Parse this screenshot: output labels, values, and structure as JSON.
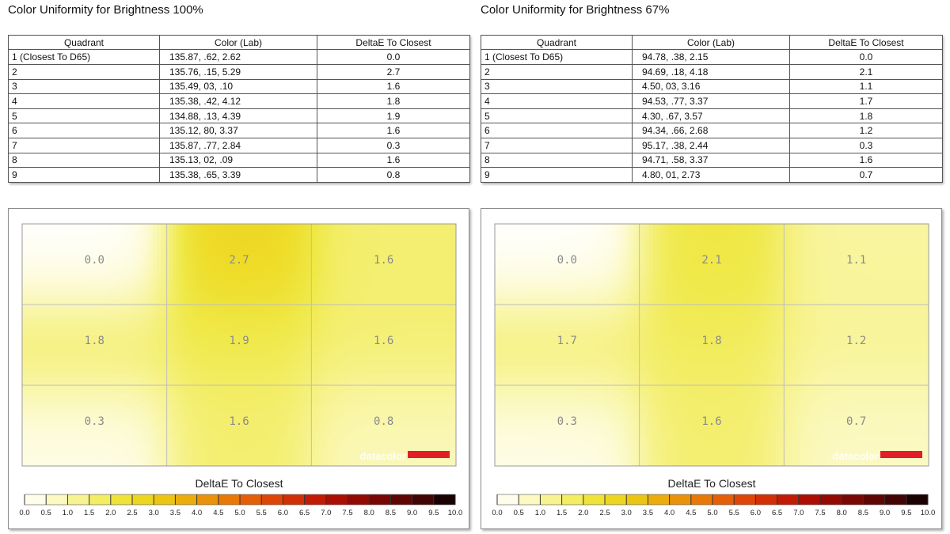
{
  "panels": [
    {
      "title": "Color Uniformity for Brightness 100%",
      "table": {
        "headers": [
          "Quadrant",
          "Color (Lab)",
          "DeltaE To Closest"
        ],
        "rows": [
          [
            "1 (Closest To D65)",
            "135.87,   .62,  2.62",
            "0.0"
          ],
          [
            "2",
            "135.76,   .15,  5.29",
            "2.7"
          ],
          [
            "3",
            "135.49,   03,    .10",
            "1.6"
          ],
          [
            "4",
            "135.38,   .42,  4.12",
            "1.8"
          ],
          [
            "5",
            "134.88,   .13,  4.39",
            "1.9"
          ],
          [
            "6",
            "135.12,   80,  3.37",
            "1.6"
          ],
          [
            "7",
            "135.87,   .77,  2.84",
            "0.3"
          ],
          [
            "8",
            "135.13,   02,    .09",
            "1.6"
          ],
          [
            "9",
            "135.38,   .65,  3.39",
            "0.8"
          ]
        ]
      }
    },
    {
      "title": "Color Uniformity for Brightness 67%",
      "table": {
        "headers": [
          "Quadrant",
          "Color (Lab)",
          "DeltaE To Closest"
        ],
        "rows": [
          [
            "1 (Closest To D65)",
            "94.78,   .38,  2.15",
            "0.0"
          ],
          [
            "2",
            "94.69,   .18,  4.18",
            "2.1"
          ],
          [
            "3",
            "4.50,   03,  3.16",
            "1.1"
          ],
          [
            "4",
            "94.53,   .77,  3.37",
            "1.7"
          ],
          [
            "5",
            "4.30,   .67,  3.57",
            "1.8"
          ],
          [
            "6",
            "94.34,   .66,  2.68",
            "1.2"
          ],
          [
            "7",
            "95.17,   .38,  2.44",
            "0.3"
          ],
          [
            "8",
            "94.71,   .58,  3.37",
            "1.6"
          ],
          [
            "9",
            "4.80,   01,  2.73",
            "0.7"
          ]
        ]
      }
    }
  ],
  "chart_data": [
    {
      "type": "heatmap",
      "grid": {
        "rows": 3,
        "cols": 3
      },
      "values": [
        [
          0.0,
          2.7,
          1.6
        ],
        [
          1.8,
          1.9,
          1.6
        ],
        [
          0.3,
          1.6,
          0.8
        ]
      ],
      "colorbar": {
        "label": "DeltaE To Closest",
        "range": [
          0,
          10
        ],
        "ticks": [
          "0.0",
          "0.5",
          "1.0",
          "1.5",
          "2.0",
          "2.5",
          "3.0",
          "3.5",
          "4.0",
          "4.5",
          "5.0",
          "5.5",
          "6.0",
          "6.5",
          "7.0",
          "7.5",
          "8.0",
          "8.5",
          "9.0",
          "9.5",
          "10.0"
        ],
        "colors": [
          "#ffffff",
          "#fdfbd8",
          "#f9f6a8",
          "#f5f07a",
          "#efe94a",
          "#eedd2a",
          "#ecce18",
          "#ebbb10",
          "#ea9e0a",
          "#e98508",
          "#e76a08",
          "#e25208",
          "#d93a08",
          "#cc2406",
          "#b81204",
          "#a00a04",
          "#860704",
          "#6c0604",
          "#520604",
          "#340303",
          "#000000"
        ]
      },
      "watermark": "datacolor"
    },
    {
      "type": "heatmap",
      "grid": {
        "rows": 3,
        "cols": 3
      },
      "values": [
        [
          0.0,
          2.1,
          1.1
        ],
        [
          1.7,
          1.8,
          1.2
        ],
        [
          0.3,
          1.6,
          0.7
        ]
      ],
      "colorbar": {
        "label": "DeltaE To Closest",
        "range": [
          0,
          10
        ],
        "ticks": [
          "0.0",
          "0.5",
          "1.0",
          "1.5",
          "2.0",
          "2.5",
          "3.0",
          "3.5",
          "4.0",
          "4.5",
          "5.0",
          "5.5",
          "6.0",
          "6.5",
          "7.0",
          "7.5",
          "8.0",
          "8.5",
          "9.0",
          "9.5",
          "10.0"
        ],
        "colors": [
          "#ffffff",
          "#fdfbd8",
          "#f9f6a8",
          "#f5f07a",
          "#efe94a",
          "#eedd2a",
          "#ecce18",
          "#ebbb10",
          "#ea9e0a",
          "#e98508",
          "#e76a08",
          "#e25208",
          "#d93a08",
          "#cc2406",
          "#b81204",
          "#a00a04",
          "#860704",
          "#6c0604",
          "#520604",
          "#340303",
          "#000000"
        ]
      },
      "watermark": "datacolor"
    }
  ]
}
